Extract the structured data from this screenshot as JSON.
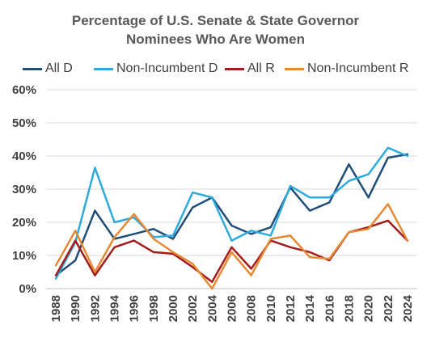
{
  "chart_data": {
    "type": "line",
    "title_lines": [
      "Percentage of U.S. Senate & State Governor",
      "Nominees Who Are Women"
    ],
    "xlabel": "",
    "ylabel": "",
    "x": [
      1988,
      1990,
      1992,
      1994,
      1996,
      1998,
      2000,
      2002,
      2004,
      2006,
      2008,
      2010,
      2012,
      2014,
      2016,
      2018,
      2020,
      2022,
      2024
    ],
    "ylim": [
      0,
      60
    ],
    "yticks": [
      0,
      10,
      20,
      30,
      40,
      50,
      60
    ],
    "ytick_labels": [
      "0%",
      "10%",
      "20%",
      "30%",
      "40%",
      "50%",
      "60%"
    ],
    "grid": "horizontal",
    "legend_position": "top",
    "series": [
      {
        "name": "All D",
        "color": "#1f4e79",
        "values": [
          4,
          8.5,
          23.5,
          15,
          16.5,
          18,
          15,
          24.5,
          27.5,
          19,
          16.5,
          18.5,
          30.5,
          23.5,
          26,
          37.5,
          27.5,
          39.5,
          40.5
        ]
      },
      {
        "name": "Non-Incumbent D",
        "color": "#2eaadc",
        "values": [
          3,
          14,
          36.5,
          20,
          21.5,
          15.5,
          16,
          29,
          27.5,
          14.5,
          17.5,
          16,
          31,
          27.5,
          27.5,
          32.5,
          34.5,
          42.5,
          40
        ]
      },
      {
        "name": "All R",
        "color": "#a31c1c",
        "values": [
          4,
          14.5,
          4,
          12.5,
          14.5,
          11,
          10.5,
          6.5,
          2,
          12.5,
          6,
          14.5,
          12.5,
          11,
          8.5,
          17,
          18.5,
          20.5,
          14.5
        ]
      },
      {
        "name": "Non-Incumbent R",
        "color": "#e58a33",
        "values": [
          7,
          17.5,
          5,
          15.5,
          22.5,
          15,
          11,
          7.5,
          0,
          11,
          4,
          15,
          16,
          9.5,
          9,
          17,
          18,
          25.5,
          14.5
        ]
      }
    ]
  }
}
